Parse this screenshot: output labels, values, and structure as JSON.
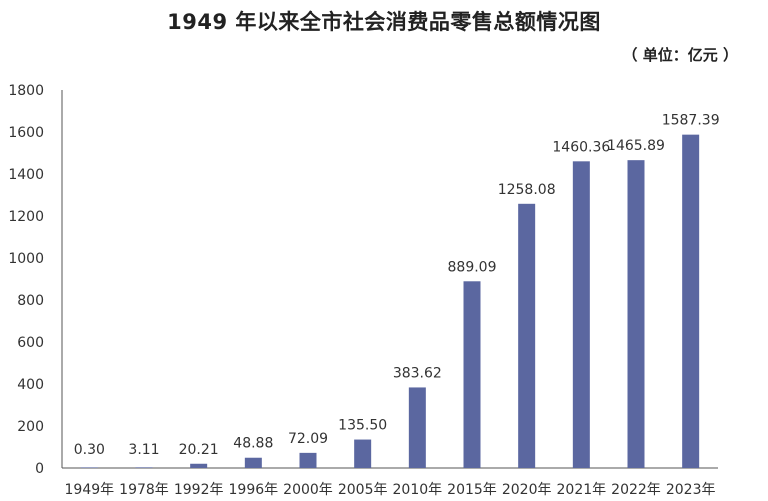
{
  "chart_data": {
    "type": "bar",
    "title": "1949 年以来全市社会消费品零售总额情况图",
    "subtitle": "（ 单位：亿元 ）",
    "categories": [
      "1949年",
      "1978年",
      "1992年",
      "1996年",
      "2000年",
      "2005年",
      "2010年",
      "2015年",
      "2020年",
      "2021年",
      "2022年",
      "2023年"
    ],
    "values": [
      0.3,
      3.11,
      20.21,
      48.88,
      72.09,
      135.5,
      383.62,
      889.09,
      1258.08,
      1460.36,
      1465.89,
      1587.39
    ],
    "value_labels": [
      "0.30",
      "3.11",
      "20.21",
      "48.88",
      "72.09",
      "135.50",
      "383.62",
      "889.09",
      "1258.08",
      "1460.36",
      "1465.89",
      "1587.39"
    ],
    "ylim": [
      0,
      1800
    ],
    "yticks": [
      "0",
      "200",
      "400",
      "600",
      "800",
      "1000",
      "1200",
      "1400",
      "1600",
      "1800"
    ],
    "xlabel": "",
    "ylabel": "",
    "grid": false,
    "bar_color": "#5b67a0"
  }
}
